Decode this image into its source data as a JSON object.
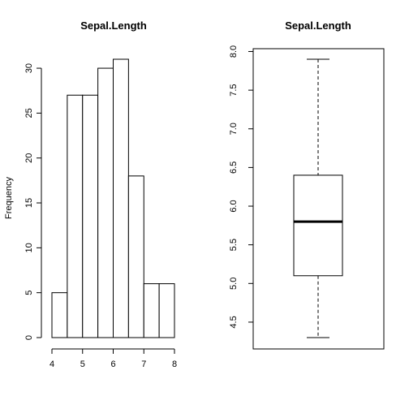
{
  "chart_data": [
    {
      "type": "bar",
      "title": "Sepal.Length",
      "xlabel": "",
      "ylabel": "Frequency",
      "bins": [
        {
          "from": 4.0,
          "to": 4.5,
          "count": 5
        },
        {
          "from": 4.5,
          "to": 5.0,
          "count": 27
        },
        {
          "from": 5.0,
          "to": 5.5,
          "count": 27
        },
        {
          "from": 5.5,
          "to": 6.0,
          "count": 30
        },
        {
          "from": 6.0,
          "to": 6.5,
          "count": 31
        },
        {
          "from": 6.5,
          "to": 7.0,
          "count": 18
        },
        {
          "from": 7.0,
          "to": 7.5,
          "count": 6
        },
        {
          "from": 7.5,
          "to": 8.0,
          "count": 6
        }
      ],
      "xlim": [
        4,
        8
      ],
      "ylim": [
        0,
        31
      ],
      "xticks": [
        "4",
        "5",
        "6",
        "7",
        "8"
      ],
      "yticks": [
        "0",
        "5",
        "10",
        "15",
        "20",
        "25",
        "30"
      ],
      "grid": false
    },
    {
      "type": "box",
      "title": "Sepal.Length",
      "ylabel": "",
      "min": 4.3,
      "q1": 5.1,
      "median": 5.8,
      "q3": 6.4,
      "max": 7.9,
      "ylim": [
        4.3,
        7.9
      ],
      "yticks": [
        "4.5",
        "5.0",
        "5.5",
        "6.0",
        "6.5",
        "7.0",
        "7.5",
        "8.0"
      ],
      "grid": false
    }
  ]
}
